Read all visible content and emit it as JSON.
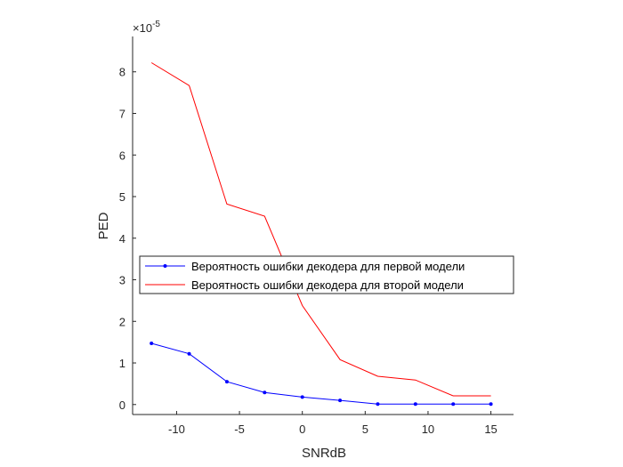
{
  "chart_data": {
    "type": "line",
    "title": "",
    "xlabel": "SNRdB",
    "ylabel": "PED",
    "y_exponent_label": "×10",
    "y_exponent_power": "-5",
    "xlim": [
      -13.5,
      16.8
    ],
    "ylim": [
      -0.24,
      8.85
    ],
    "x_ticks": [
      -10,
      -5,
      0,
      5,
      10,
      15
    ],
    "x_tick_labels": [
      "-10",
      "-5",
      "0",
      "5",
      "10",
      "15"
    ],
    "y_ticks": [
      0,
      1,
      2,
      3,
      4,
      5,
      6,
      7,
      8
    ],
    "y_tick_labels": [
      "0",
      "1",
      "2",
      "3",
      "4",
      "5",
      "6",
      "7",
      "8"
    ],
    "grid": false,
    "legend_position": "center",
    "x": [
      -12,
      -9,
      -6,
      -3,
      0,
      3,
      6,
      9,
      12,
      15
    ],
    "series": [
      {
        "name": "Вероятность ошибки декодера для первой модели",
        "color": "#0000ff",
        "marker": "dot",
        "values": [
          1.47,
          1.22,
          0.55,
          0.29,
          0.18,
          0.1,
          0.01,
          0.01,
          0.01,
          0.01
        ]
      },
      {
        "name": "Вероятность ошибки декодера для второй модели",
        "color": "#ff0000",
        "marker": "none",
        "values": [
          8.22,
          7.67,
          4.82,
          4.53,
          2.38,
          1.08,
          0.68,
          0.59,
          0.21,
          0.21
        ]
      }
    ]
  }
}
